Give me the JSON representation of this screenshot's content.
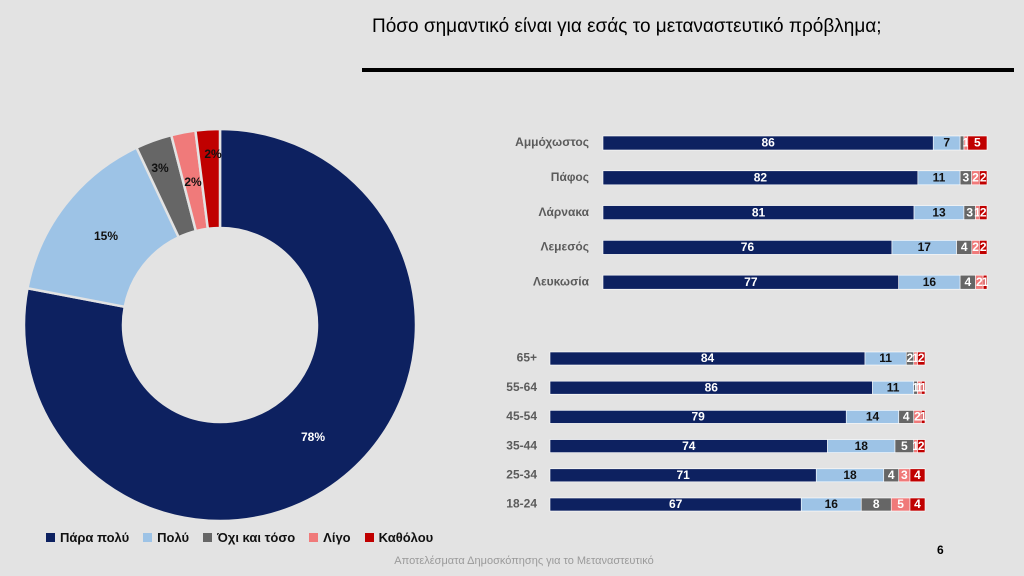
{
  "slide": {
    "title": "Πόσο σημαντικό είναι για εσάς το μεταναστευτικό πρόβλημα;",
    "footer": "Αποτελέσματα Δημοσκόπησης για το Μεταναστευτικό",
    "page_number": "6"
  },
  "chart_data": [
    {
      "type": "pie",
      "variant": "donut",
      "categories": [
        "Πάρα πολύ",
        "Πολύ",
        "Όχι και τόσο",
        "Λίγο",
        "Καθόλου"
      ],
      "values": [
        78,
        15,
        3,
        2,
        2
      ],
      "labels": [
        "78%",
        "15%",
        "3%",
        "2%",
        "2%"
      ],
      "colors": [
        "#0d2160",
        "#9dc3e6",
        "#666666",
        "#f07a7a",
        "#c00000"
      ],
      "legend": "bottom"
    },
    {
      "type": "bar",
      "orientation": "horizontal",
      "stacked": true,
      "categories": [
        "Αμμόχωστος",
        "Πάφος",
        "Λάρνακα",
        "Λεμεσός",
        "Λευκωσία"
      ],
      "series": [
        {
          "name": "Πάρα πολύ",
          "values": [
            86,
            82,
            81,
            76,
            77
          ]
        },
        {
          "name": "Πολύ",
          "values": [
            7,
            11,
            13,
            17,
            16
          ]
        },
        {
          "name": "Όχι και τόσο",
          "values": [
            1,
            3,
            3,
            4,
            4
          ]
        },
        {
          "name": "Λίγο",
          "values": [
            1,
            2,
            1,
            2,
            2
          ]
        },
        {
          "name": "Καθόλου",
          "values": [
            5,
            2,
            2,
            2,
            1
          ]
        }
      ],
      "data_labels": [
        [
          "86",
          "7",
          "",
          "1",
          "5"
        ],
        [
          "82",
          "11",
          "3",
          "2",
          "2"
        ],
        [
          "81",
          "13",
          "3",
          "1",
          "2"
        ],
        [
          "76",
          "17",
          "4",
          "2",
          "2"
        ],
        [
          "77",
          "16",
          "4",
          "2",
          "1"
        ]
      ]
    },
    {
      "type": "bar",
      "orientation": "horizontal",
      "stacked": true,
      "categories": [
        "65+",
        "55-64",
        "45-54",
        "35-44",
        "25-34",
        "18-24"
      ],
      "series": [
        {
          "name": "Πάρα πολύ",
          "values": [
            84,
            86,
            79,
            74,
            71,
            67
          ]
        },
        {
          "name": "Πολύ",
          "values": [
            11,
            11,
            14,
            18,
            18,
            16
          ]
        },
        {
          "name": "Όχι και τόσο",
          "values": [
            2,
            1,
            4,
            5,
            4,
            8
          ]
        },
        {
          "name": "Λίγο",
          "values": [
            1,
            1,
            2,
            1,
            3,
            5
          ]
        },
        {
          "name": "Καθόλου",
          "values": [
            2,
            1,
            1,
            2,
            4,
            4
          ]
        }
      ],
      "data_labels": [
        [
          "84",
          "11",
          "2",
          "1",
          "2"
        ],
        [
          "86",
          "11",
          "1",
          "1",
          "1"
        ],
        [
          "79",
          "14",
          "4",
          "2",
          "1"
        ],
        [
          "74",
          "18",
          "5",
          "1",
          "2"
        ],
        [
          "71",
          "18",
          "4",
          "3",
          "4"
        ],
        [
          "67",
          "16",
          "8",
          "5",
          "4"
        ]
      ]
    }
  ]
}
